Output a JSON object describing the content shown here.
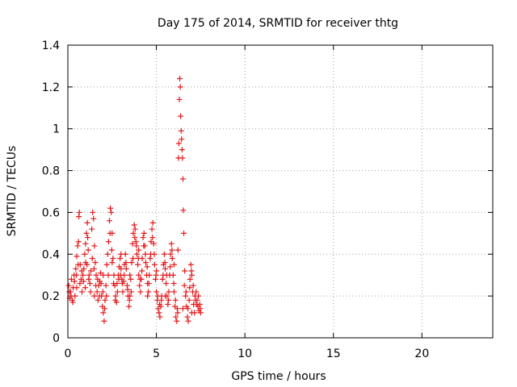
{
  "chart_data": {
    "type": "scatter",
    "title": "Day 175 of 2014, SRMTID for receiver thtg",
    "xlabel": "GPS time / hours",
    "ylabel": "SRMTID / TECUs",
    "xlim": [
      0,
      24
    ],
    "ylim": [
      0,
      1.4
    ],
    "x_ticks": [
      0,
      5,
      10,
      15,
      20
    ],
    "y_ticks": [
      0,
      0.2,
      0.4,
      0.6,
      0.8,
      1,
      1.2,
      1.4
    ],
    "x_tick_labels": [
      "0",
      "5",
      "10",
      "15",
      "20"
    ],
    "y_tick_labels": [
      "0",
      "0.2",
      "0.4",
      "0.6",
      "0.8",
      "1",
      "1.2",
      "1.4"
    ],
    "grid": true,
    "marker": "+",
    "color": "#e41a1c",
    "series": [
      {
        "name": "SRMTID",
        "points": [
          [
            0.05,
            0.25
          ],
          [
            0.1,
            0.19
          ],
          [
            0.15,
            0.22
          ],
          [
            0.2,
            0.28
          ],
          [
            0.25,
            0.18
          ],
          [
            0.3,
            0.24
          ],
          [
            0.35,
            0.3
          ],
          [
            0.4,
            0.2
          ],
          [
            0.45,
            0.33
          ],
          [
            0.5,
            0.39
          ],
          [
            0.55,
            0.44
          ],
          [
            0.6,
            0.46
          ],
          [
            0.62,
            0.58
          ],
          [
            0.65,
            0.6
          ],
          [
            0.7,
            0.35
          ],
          [
            0.75,
            0.28
          ],
          [
            0.8,
            0.22
          ],
          [
            0.85,
            0.3
          ],
          [
            0.9,
            0.33
          ],
          [
            0.95,
            0.4
          ],
          [
            1.0,
            0.36
          ],
          [
            1.05,
            0.5
          ],
          [
            1.1,
            0.55
          ],
          [
            1.12,
            0.48
          ],
          [
            1.15,
            0.42
          ],
          [
            1.2,
            0.3
          ],
          [
            1.25,
            0.26
          ],
          [
            1.3,
            0.32
          ],
          [
            1.35,
            0.52
          ],
          [
            1.4,
            0.6
          ],
          [
            1.45,
            0.57
          ],
          [
            1.5,
            0.44
          ],
          [
            1.55,
            0.36
          ],
          [
            1.6,
            0.3
          ],
          [
            1.65,
            0.22
          ],
          [
            1.7,
            0.18
          ],
          [
            1.75,
            0.25
          ],
          [
            1.8,
            0.27
          ],
          [
            1.85,
            0.31
          ],
          [
            1.9,
            0.2
          ],
          [
            1.95,
            0.15
          ],
          [
            2.0,
            0.12
          ],
          [
            2.05,
            0.08
          ],
          [
            2.1,
            0.18
          ],
          [
            2.15,
            0.25
          ],
          [
            2.2,
            0.35
          ],
          [
            2.25,
            0.4
          ],
          [
            2.3,
            0.46
          ],
          [
            2.35,
            0.56
          ],
          [
            2.4,
            0.62
          ],
          [
            2.45,
            0.6
          ],
          [
            2.5,
            0.5
          ],
          [
            2.55,
            0.38
          ],
          [
            2.6,
            0.3
          ],
          [
            2.65,
            0.25
          ],
          [
            2.7,
            0.2
          ],
          [
            2.75,
            0.17
          ],
          [
            2.8,
            0.22
          ],
          [
            2.85,
            0.3
          ],
          [
            2.9,
            0.34
          ],
          [
            2.95,
            0.38
          ],
          [
            3.0,
            0.33
          ],
          [
            3.05,
            0.28
          ],
          [
            3.1,
            0.22
          ],
          [
            3.15,
            0.27
          ],
          [
            3.2,
            0.35
          ],
          [
            3.25,
            0.4
          ],
          [
            3.3,
            0.33
          ],
          [
            3.35,
            0.25
          ],
          [
            3.4,
            0.2
          ],
          [
            3.45,
            0.15
          ],
          [
            3.5,
            0.2
          ],
          [
            3.55,
            0.28
          ],
          [
            3.6,
            0.36
          ],
          [
            3.65,
            0.45
          ],
          [
            3.7,
            0.5
          ],
          [
            3.75,
            0.54
          ],
          [
            3.8,
            0.52
          ],
          [
            3.85,
            0.46
          ],
          [
            3.9,
            0.4
          ],
          [
            3.95,
            0.35
          ],
          [
            4.0,
            0.3
          ],
          [
            4.05,
            0.25
          ],
          [
            4.1,
            0.22
          ],
          [
            4.15,
            0.28
          ],
          [
            4.2,
            0.38
          ],
          [
            4.25,
            0.48
          ],
          [
            4.3,
            0.5
          ],
          [
            4.35,
            0.44
          ],
          [
            4.4,
            0.36
          ],
          [
            4.45,
            0.3
          ],
          [
            4.5,
            0.26
          ],
          [
            4.55,
            0.22
          ],
          [
            4.6,
            0.3
          ],
          [
            4.65,
            0.38
          ],
          [
            4.7,
            0.46
          ],
          [
            4.75,
            0.52
          ],
          [
            4.8,
            0.55
          ],
          [
            4.85,
            0.45
          ],
          [
            4.9,
            0.35
          ],
          [
            4.95,
            0.28
          ],
          [
            5.0,
            0.22
          ],
          [
            5.05,
            0.18
          ],
          [
            5.1,
            0.14
          ],
          [
            5.15,
            0.12
          ],
          [
            5.2,
            0.1
          ],
          [
            5.25,
            0.15
          ],
          [
            5.3,
            0.2
          ],
          [
            5.35,
            0.28
          ],
          [
            5.4,
            0.35
          ],
          [
            5.45,
            0.4
          ],
          [
            5.5,
            0.33
          ],
          [
            5.55,
            0.26
          ],
          [
            5.6,
            0.2
          ],
          [
            5.65,
            0.16
          ],
          [
            5.7,
            0.22
          ],
          [
            5.75,
            0.3
          ],
          [
            5.8,
            0.4
          ],
          [
            5.85,
            0.45
          ],
          [
            5.9,
            0.38
          ],
          [
            5.95,
            0.3
          ],
          [
            6.0,
            0.22
          ],
          [
            6.05,
            0.15
          ],
          [
            6.1,
            0.1
          ],
          [
            6.15,
            0.08
          ],
          [
            6.2,
            0.12
          ],
          [
            6.22,
            0.42
          ],
          [
            6.25,
            0.86
          ],
          [
            6.27,
            0.93
          ],
          [
            6.3,
            1.14
          ],
          [
            6.32,
            1.24
          ],
          [
            6.35,
            1.2
          ],
          [
            6.37,
            1.06
          ],
          [
            6.4,
            0.99
          ],
          [
            6.42,
            0.95
          ],
          [
            6.45,
            0.9
          ],
          [
            6.47,
            0.86
          ],
          [
            6.5,
            0.76
          ],
          [
            6.52,
            0.61
          ],
          [
            6.55,
            0.5
          ],
          [
            6.6,
            0.32
          ],
          [
            6.65,
            0.2
          ],
          [
            6.7,
            0.15
          ],
          [
            6.75,
            0.1
          ],
          [
            6.8,
            0.08
          ],
          [
            6.85,
            0.18
          ],
          [
            6.9,
            0.28
          ],
          [
            6.95,
            0.35
          ],
          [
            7.0,
            0.3
          ],
          [
            7.05,
            0.22
          ],
          [
            7.1,
            0.16
          ],
          [
            7.15,
            0.12
          ],
          [
            7.2,
            0.18
          ],
          [
            7.25,
            0.22
          ],
          [
            7.3,
            0.18
          ],
          [
            7.35,
            0.15
          ],
          [
            7.4,
            0.13
          ],
          [
            7.45,
            0.16
          ],
          [
            7.5,
            0.12
          ],
          [
            0.08,
            0.22
          ],
          [
            0.18,
            0.2
          ],
          [
            0.28,
            0.17
          ],
          [
            0.38,
            0.27
          ],
          [
            0.48,
            0.3
          ],
          [
            0.58,
            0.35
          ],
          [
            0.68,
            0.26
          ],
          [
            0.78,
            0.32
          ],
          [
            0.88,
            0.27
          ],
          [
            0.98,
            0.24
          ],
          [
            1.08,
            0.35
          ],
          [
            1.18,
            0.28
          ],
          [
            1.28,
            0.22
          ],
          [
            1.38,
            0.38
          ],
          [
            1.48,
            0.33
          ],
          [
            1.58,
            0.25
          ],
          [
            1.68,
            0.28
          ],
          [
            1.78,
            0.2
          ],
          [
            1.88,
            0.26
          ],
          [
            1.98,
            0.22
          ],
          [
            2.08,
            0.14
          ],
          [
            2.18,
            0.2
          ],
          [
            2.28,
            0.3
          ],
          [
            2.38,
            0.5
          ],
          [
            2.48,
            0.42
          ],
          [
            2.58,
            0.26
          ],
          [
            2.68,
            0.18
          ],
          [
            2.78,
            0.26
          ],
          [
            2.88,
            0.28
          ],
          [
            2.98,
            0.3
          ],
          [
            3.08,
            0.26
          ],
          [
            3.18,
            0.3
          ],
          [
            3.28,
            0.36
          ],
          [
            3.38,
            0.23
          ],
          [
            3.48,
            0.18
          ],
          [
            3.58,
            0.22
          ],
          [
            3.68,
            0.38
          ],
          [
            3.78,
            0.48
          ],
          [
            3.88,
            0.44
          ],
          [
            3.98,
            0.38
          ],
          [
            4.08,
            0.28
          ],
          [
            4.18,
            0.32
          ],
          [
            4.28,
            0.44
          ],
          [
            4.38,
            0.4
          ],
          [
            4.48,
            0.34
          ],
          [
            4.58,
            0.26
          ],
          [
            4.68,
            0.4
          ],
          [
            4.78,
            0.48
          ],
          [
            4.88,
            0.4
          ],
          [
            4.98,
            0.3
          ],
          [
            5.08,
            0.2
          ],
          [
            5.18,
            0.16
          ],
          [
            5.28,
            0.18
          ],
          [
            5.38,
            0.3
          ],
          [
            5.48,
            0.36
          ],
          [
            5.58,
            0.3
          ],
          [
            5.68,
            0.18
          ],
          [
            5.78,
            0.34
          ],
          [
            5.88,
            0.42
          ],
          [
            5.98,
            0.26
          ],
          [
            6.08,
            0.18
          ],
          [
            6.18,
            0.14
          ],
          [
            6.58,
            0.25
          ],
          [
            6.68,
            0.22
          ],
          [
            6.78,
            0.14
          ],
          [
            6.88,
            0.24
          ],
          [
            6.98,
            0.32
          ],
          [
            7.08,
            0.25
          ],
          [
            7.18,
            0.2
          ],
          [
            7.28,
            0.16
          ],
          [
            7.38,
            0.2
          ],
          [
            7.48,
            0.14
          ],
          [
            0.5,
            0.24
          ],
          [
            1.0,
            0.45
          ],
          [
            1.5,
            0.2
          ],
          [
            2.0,
            0.3
          ],
          [
            2.5,
            0.36
          ],
          [
            3.0,
            0.4
          ],
          [
            3.5,
            0.3
          ],
          [
            4.0,
            0.42
          ],
          [
            4.5,
            0.2
          ],
          [
            5.0,
            0.32
          ],
          [
            5.5,
            0.2
          ],
          [
            6.0,
            0.35
          ],
          [
            6.5,
            0.14
          ],
          [
            7.0,
            0.12
          ]
        ]
      }
    ]
  }
}
